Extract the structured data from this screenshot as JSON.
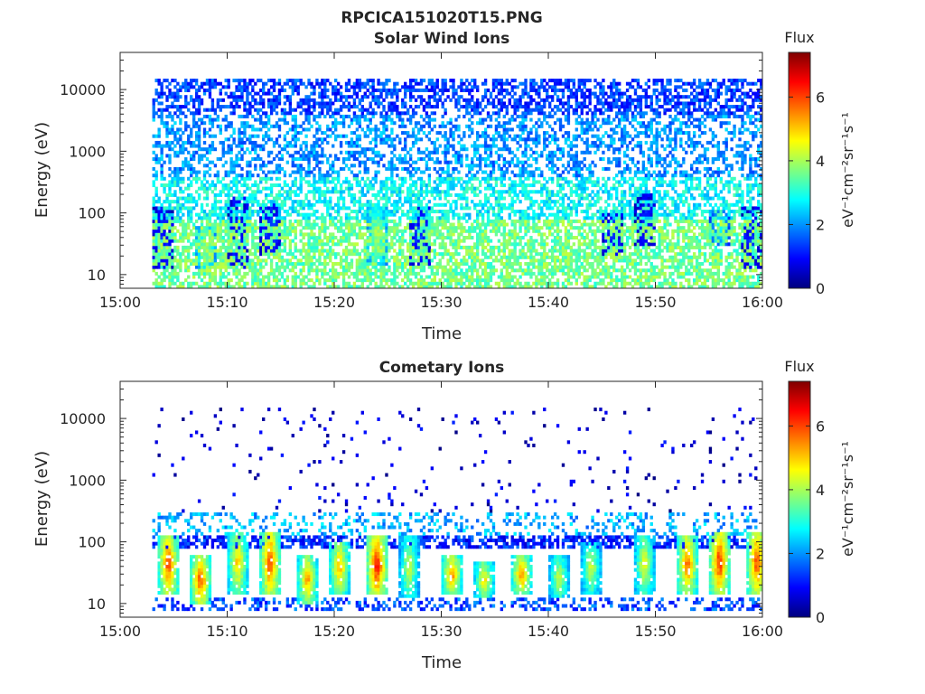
{
  "figure": {
    "title": "RPCICA151020T15.PNG",
    "colormap_stops": [
      "#00007f",
      "#0000ff",
      "#007fff",
      "#00ffff",
      "#7fff7f",
      "#ffff00",
      "#ff7f00",
      "#ff0000",
      "#7f0000"
    ]
  },
  "chart_data": [
    {
      "type": "heatmap",
      "title": "Solar Wind Ions",
      "xlabel": "Time",
      "ylabel": "Energy (eV)",
      "x_range": [
        "15:00",
        "16:00"
      ],
      "x_ticks": [
        "15:00",
        "15:10",
        "15:20",
        "15:30",
        "15:40",
        "15:50",
        "16:00"
      ],
      "y_scale": "log",
      "ylim": [
        6,
        40000
      ],
      "y_ticks": [
        10,
        100,
        1000,
        10000
      ],
      "y_tick_labels": [
        "10",
        "100",
        "1000",
        "10000"
      ],
      "data_start": "15:03",
      "data_end": "16:00",
      "colorbar": {
        "title": "Flux",
        "label": "eV⁻¹cm⁻²sr⁻¹s⁻¹",
        "range": [
          0,
          7.4
        ],
        "ticks": [
          0,
          2,
          4,
          6
        ],
        "tick_labels": [
          "0",
          "2",
          "4",
          "6"
        ]
      },
      "bands": [
        {
          "emin": 6,
          "emax": 80,
          "level": 3.6,
          "density": 0.65
        },
        {
          "emin": 80,
          "emax": 400,
          "level": 2.8,
          "density": 0.55
        },
        {
          "emin": 400,
          "emax": 4000,
          "level": 2.0,
          "density": 0.45
        },
        {
          "emin": 4000,
          "emax": 15000,
          "level": 1.4,
          "density": 0.55
        }
      ],
      "bursts": [
        {
          "time": "15:04",
          "emin": 12,
          "emax": 130,
          "level": 1.3
        },
        {
          "time": "15:08",
          "emin": 12,
          "emax": 60,
          "level": 4.3
        },
        {
          "time": "15:11",
          "emin": 12,
          "emax": 180,
          "level": 1.3
        },
        {
          "time": "15:14",
          "emin": 20,
          "emax": 150,
          "level": 1.5
        },
        {
          "time": "15:24",
          "emin": 15,
          "emax": 120,
          "level": 4.3
        },
        {
          "time": "15:28",
          "emin": 15,
          "emax": 120,
          "level": 1.5
        },
        {
          "time": "15:46",
          "emin": 20,
          "emax": 110,
          "level": 1.4
        },
        {
          "time": "15:49",
          "emin": 30,
          "emax": 200,
          "level": 1.2
        },
        {
          "time": "15:56",
          "emin": 30,
          "emax": 110,
          "level": 3.0
        },
        {
          "time": "15:59",
          "emin": 12,
          "emax": 120,
          "level": 1.3
        }
      ]
    },
    {
      "type": "heatmap",
      "title": "Cometary Ions",
      "xlabel": "Time",
      "ylabel": "Energy (eV)",
      "x_range": [
        "15:00",
        "16:00"
      ],
      "x_ticks": [
        "15:00",
        "15:10",
        "15:20",
        "15:30",
        "15:40",
        "15:50",
        "16:00"
      ],
      "y_scale": "log",
      "ylim": [
        6,
        40000
      ],
      "y_ticks": [
        10,
        100,
        1000,
        10000
      ],
      "y_tick_labels": [
        "10",
        "100",
        "1000",
        "10000"
      ],
      "data_start": "15:03",
      "data_end": "16:00",
      "colorbar": {
        "title": "Flux",
        "label": "eV⁻¹cm⁻²sr⁻¹s⁻¹",
        "range": [
          0,
          7.4
        ],
        "ticks": [
          0,
          2,
          4,
          6
        ],
        "tick_labels": [
          "0",
          "2",
          "4",
          "6"
        ]
      },
      "bands": [
        {
          "emin": 8,
          "emax": 13,
          "level": 1.5,
          "density": 0.35
        },
        {
          "emin": 80,
          "emax": 130,
          "level": 1.2,
          "density": 0.6
        },
        {
          "emin": 130,
          "emax": 300,
          "level": 2.2,
          "density": 0.25
        },
        {
          "emin": 300,
          "emax": 15000,
          "level": 0.6,
          "density": 0.03
        }
      ],
      "bursts": [
        {
          "time": "15:04.5",
          "emin": 15,
          "emax": 130,
          "level": 6.3
        },
        {
          "time": "15:07.5",
          "emin": 10,
          "emax": 60,
          "level": 6.2
        },
        {
          "time": "15:11",
          "emin": 15,
          "emax": 150,
          "level": 5.3
        },
        {
          "time": "15:14",
          "emin": 15,
          "emax": 150,
          "level": 6.3
        },
        {
          "time": "15:17.5",
          "emin": 10,
          "emax": 60,
          "level": 5.5
        },
        {
          "time": "15:20.5",
          "emin": 15,
          "emax": 100,
          "level": 5.5
        },
        {
          "time": "15:24",
          "emin": 15,
          "emax": 120,
          "level": 6.8
        },
        {
          "time": "15:27",
          "emin": 12,
          "emax": 120,
          "level": 4.5
        },
        {
          "time": "15:31",
          "emin": 15,
          "emax": 60,
          "level": 5.8
        },
        {
          "time": "15:34",
          "emin": 12,
          "emax": 50,
          "level": 5.0
        },
        {
          "time": "15:37.5",
          "emin": 15,
          "emax": 60,
          "level": 5.8
        },
        {
          "time": "15:41",
          "emin": 12,
          "emax": 60,
          "level": 4.5
        },
        {
          "time": "15:44",
          "emin": 15,
          "emax": 100,
          "level": 4.5
        },
        {
          "time": "15:49",
          "emin": 15,
          "emax": 130,
          "level": 4.8
        },
        {
          "time": "15:53",
          "emin": 15,
          "emax": 130,
          "level": 6.0
        },
        {
          "time": "15:56",
          "emin": 15,
          "emax": 150,
          "level": 6.5
        },
        {
          "time": "15:59.5",
          "emin": 15,
          "emax": 150,
          "level": 6.3
        }
      ]
    }
  ]
}
